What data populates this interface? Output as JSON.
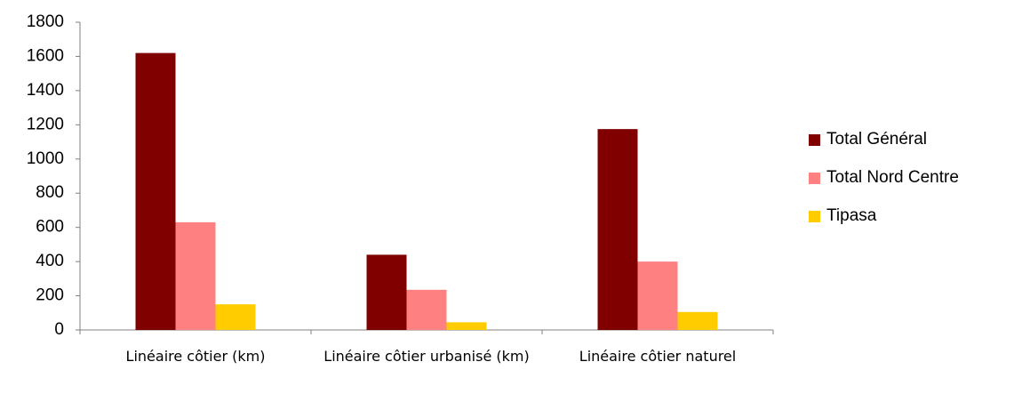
{
  "chart_data": {
    "type": "bar",
    "categories": [
      "Linéaire côtier (km)",
      "Linéaire côtier urbanisé (km)",
      "Linéaire côtier naturel"
    ],
    "series": [
      {
        "name": "Total Général",
        "color": "#800000",
        "values": [
          1620,
          440,
          1175
        ]
      },
      {
        "name": "Total Nord Centre",
        "color": "#ff8080",
        "values": [
          630,
          235,
          400
        ]
      },
      {
        "name": "Tipasa",
        "color": "#ffcc00",
        "values": [
          150,
          45,
          105
        ]
      }
    ],
    "ylim": [
      0,
      1800
    ],
    "yticks": [
      0,
      200,
      400,
      600,
      800,
      1000,
      1200,
      1400,
      1600,
      1800
    ],
    "grid": false,
    "legend": "right"
  }
}
